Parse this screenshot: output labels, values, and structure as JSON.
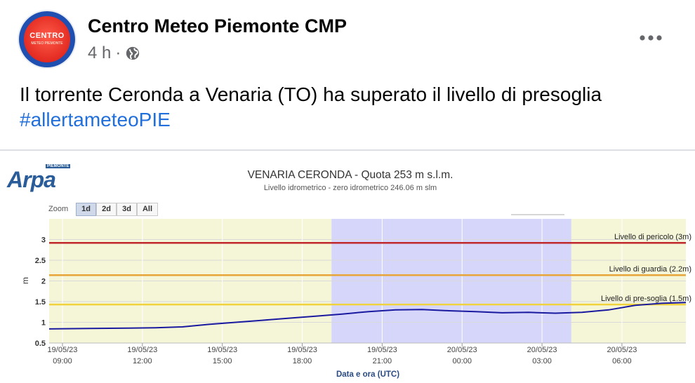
{
  "post": {
    "page_name": "Centro Meteo Piemonte CMP",
    "time": "4 h",
    "separator": "·",
    "privacy_icon": "globe-icon",
    "more_icon": "more-horizontal-icon",
    "avatar_text": "CENTRO",
    "avatar_subtext": "METEO PIEMONTE",
    "text": "Il torrente Ceronda a Venaria (TO) ha superato il livello di presoglia",
    "hashtag": "#allertameteoPIE"
  },
  "chart_header": {
    "logo_text": "Arpa",
    "logo_tag": "PIEMONTE",
    "title": "VENARIA CERONDA - Quota 253 m s.l.m.",
    "subtitle": "Livello idrometrico - zero idrometrico 246.06 m slm"
  },
  "zoom": {
    "label": "Zoom",
    "buttons": [
      "1d",
      "2d",
      "3d",
      "All"
    ],
    "active": "1d"
  },
  "chart_data": {
    "type": "line",
    "title": "VENARIA CERONDA - Quota 253 m s.l.m.",
    "subtitle": "Livello idrometrico - zero idrometrico 246.06 m slm",
    "xlabel": "Data e ora (UTC)",
    "ylabel": "m",
    "ylim": [
      0.5,
      3.5
    ],
    "yticks": [
      0.5,
      1,
      1.5,
      2,
      2.5,
      3
    ],
    "ytick_labels": [
      "0.5",
      "1",
      "1.5",
      "2",
      "2.5",
      "3"
    ],
    "xlim": [
      8.5,
      32.4
    ],
    "xticks": [
      9,
      12,
      15,
      18,
      21,
      24,
      27,
      30
    ],
    "xtick_labels": [
      [
        "19/05/23",
        "09:00"
      ],
      [
        "19/05/23",
        "12:00"
      ],
      [
        "19/05/23",
        "15:00"
      ],
      [
        "19/05/23",
        "18:00"
      ],
      [
        "19/05/23",
        "21:00"
      ],
      [
        "20/05/23",
        "00:00"
      ],
      [
        "20/05/23",
        "03:00"
      ],
      [
        "20/05/23",
        "06:00"
      ]
    ],
    "night_band": [
      19.1,
      28.1
    ],
    "thresholds": [
      {
        "name": "Livello di pericolo (3m)",
        "value": 2.92,
        "color": "#c0292b"
      },
      {
        "name": "Livello di guardia (2.2m)",
        "value": 2.14,
        "color": "#e7a53a"
      },
      {
        "name": "Livello di pre-soglia (1.5m)",
        "value": 1.43,
        "color": "#f0d33c"
      }
    ],
    "series": [
      {
        "color": "#1a1aa0",
        "x": [
          8.5,
          10.0,
          11.5,
          12.5,
          13.5,
          14.5,
          15.5,
          16.5,
          17.5,
          18.5,
          19.5,
          20.5,
          21.5,
          22.5,
          23.5,
          24.5,
          25.5,
          26.5,
          27.5,
          28.5,
          29.5,
          30.5,
          31.5,
          32.4
        ],
        "y": [
          0.84,
          0.85,
          0.86,
          0.87,
          0.89,
          0.95,
          1.0,
          1.05,
          1.1,
          1.15,
          1.2,
          1.26,
          1.3,
          1.31,
          1.28,
          1.26,
          1.23,
          1.24,
          1.22,
          1.24,
          1.3,
          1.41,
          1.46,
          1.48
        ]
      }
    ],
    "grid": true
  }
}
